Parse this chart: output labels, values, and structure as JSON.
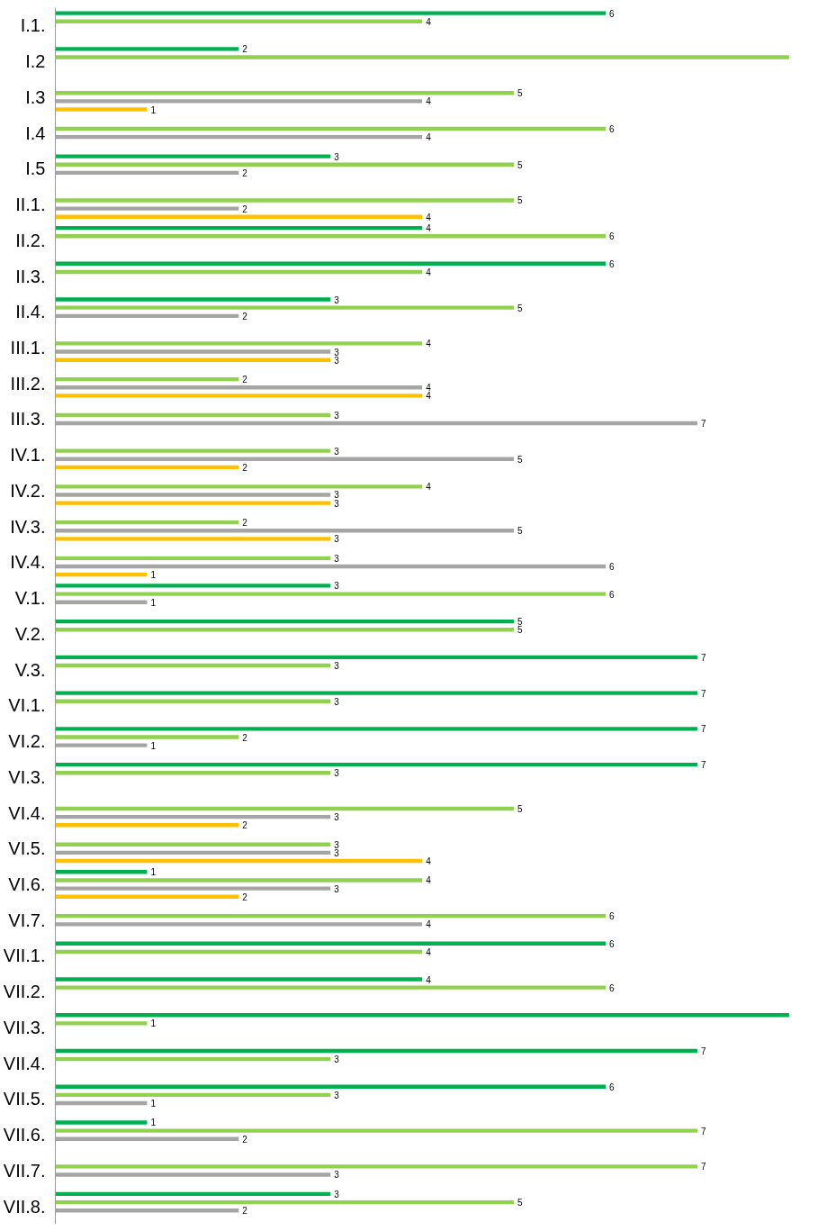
{
  "chart_data": {
    "type": "bar",
    "orientation": "horizontal",
    "tick_labels": "y",
    "grid": false,
    "categories": [
      "I.1.",
      "I.2",
      "I.3",
      "I.4",
      "I.5",
      "II.1.",
      "II.2.",
      "II.3.",
      "II.4.",
      "III.1.",
      "III.2.",
      "III.3.",
      "IV.1.",
      "IV.2.",
      "IV.3.",
      "IV.4.",
      "V.1.",
      "V.2.",
      "V.3.",
      "VI.1.",
      "VI.2.",
      "VI.3.",
      "VI.4.",
      "VI.5.",
      "VI.6.",
      "VI.7.",
      "VII.1.",
      "VII.2.",
      "VII.3.",
      "VII.4.",
      "VII.5.",
      "VII.6.",
      "VII.7.",
      "VII.8."
    ],
    "series": [
      {
        "color": "#00b050",
        "values": [
          6,
          2,
          null,
          null,
          3,
          null,
          4,
          6,
          3,
          null,
          null,
          null,
          null,
          null,
          null,
          null,
          3,
          5,
          7,
          7,
          7,
          7,
          null,
          null,
          1,
          null,
          6,
          4,
          8,
          7,
          6,
          1,
          null,
          3
        ],
        "value_labels": [
          "6",
          "2",
          null,
          null,
          "3",
          null,
          "4",
          "6",
          "3",
          null,
          null,
          null,
          null,
          null,
          null,
          null,
          "3",
          "5",
          "7",
          "7",
          "7",
          "7",
          null,
          null,
          "1",
          null,
          "6",
          "4",
          null,
          "7",
          "6",
          "1",
          null,
          "3"
        ]
      },
      {
        "color": "#92d050",
        "values": [
          4,
          8,
          5,
          6,
          5,
          5,
          6,
          4,
          5,
          4,
          2,
          3,
          3,
          4,
          2,
          3,
          6,
          5,
          3,
          3,
          2,
          3,
          5,
          3,
          4,
          6,
          4,
          6,
          1,
          3,
          3,
          7,
          7,
          5
        ],
        "value_labels": [
          "4",
          null,
          "5",
          "6",
          "5",
          "5",
          "6",
          "4",
          "5",
          "4",
          "2",
          "3",
          "3",
          "4",
          "2",
          "3",
          "6",
          "5",
          "3",
          "3",
          "2",
          "3",
          "5",
          "3",
          "4",
          "6",
          "4",
          "6",
          "1",
          "3",
          "3",
          "7",
          "7",
          "5"
        ]
      },
      {
        "color": "#a5a5a5",
        "values": [
          null,
          null,
          4,
          4,
          2,
          2,
          null,
          null,
          2,
          3,
          4,
          7,
          5,
          3,
          5,
          6,
          1,
          null,
          null,
          null,
          1,
          null,
          3,
          3,
          3,
          4,
          null,
          null,
          null,
          null,
          1,
          2,
          3,
          2
        ],
        "value_labels": [
          null,
          null,
          "4",
          "4",
          "2",
          "2",
          null,
          null,
          "2",
          "3",
          "4",
          "7",
          "5",
          "3",
          "5",
          "6",
          "1",
          null,
          null,
          null,
          "1",
          null,
          "3",
          "3",
          "3",
          "4",
          null,
          null,
          null,
          null,
          "1",
          "2",
          "3",
          "2"
        ]
      },
      {
        "color": "#ffc000",
        "values": [
          null,
          null,
          1,
          null,
          null,
          4,
          null,
          null,
          null,
          3,
          4,
          null,
          2,
          3,
          3,
          1,
          null,
          null,
          null,
          null,
          null,
          null,
          2,
          4,
          2,
          null,
          null,
          null,
          null,
          null,
          null,
          null,
          null,
          null
        ],
        "value_labels": [
          null,
          null,
          "1",
          null,
          null,
          "4",
          null,
          null,
          null,
          "3",
          "4",
          null,
          "2",
          "3",
          "3",
          "1",
          null,
          null,
          null,
          null,
          null,
          null,
          "2",
          "4",
          "2",
          null,
          null,
          null,
          null,
          null,
          null,
          null,
          null,
          null
        ]
      }
    ]
  }
}
